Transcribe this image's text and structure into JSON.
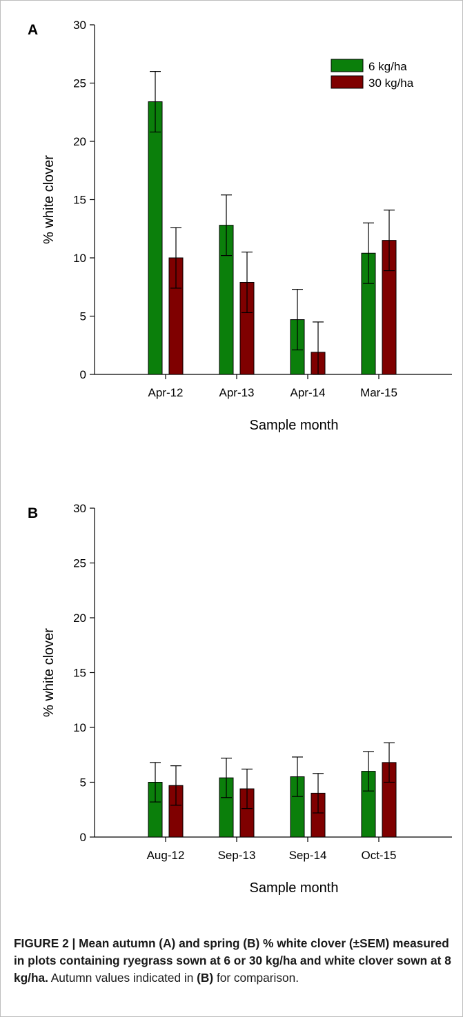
{
  "charts": [
    {
      "panel_letter": "A",
      "chart_data": {
        "type": "bar",
        "categories": [
          "Apr-12",
          "Apr-13",
          "Apr-14",
          "Mar-15"
        ],
        "series": [
          {
            "name": "6 kg/ha",
            "color": "#0b7f0b",
            "values": [
              23.4,
              12.8,
              4.7,
              10.4
            ],
            "sem": [
              2.6,
              2.6,
              2.6,
              2.6
            ]
          },
          {
            "name": "30 kg/ha",
            "color": "#7f0000",
            "values": [
              10.0,
              7.9,
              1.9,
              11.5
            ],
            "sem": [
              2.6,
              2.6,
              2.6,
              2.6
            ]
          }
        ],
        "xlabel": "Sample month",
        "ylabel": "% white clover",
        "ylim": [
          0,
          30
        ],
        "yticks": [
          0,
          5,
          10,
          15,
          20,
          25,
          30
        ],
        "grid": false,
        "legend": "top-right"
      }
    },
    {
      "panel_letter": "B",
      "chart_data": {
        "type": "bar",
        "categories": [
          "Aug-12",
          "Sep-13",
          "Sep-14",
          "Oct-15"
        ],
        "series": [
          {
            "name": "6 kg/ha",
            "color": "#0b7f0b",
            "values": [
              5.0,
              5.4,
              5.5,
              6.0
            ],
            "sem": [
              1.8,
              1.8,
              1.8,
              1.8
            ]
          },
          {
            "name": "30 kg/ha",
            "color": "#7f0000",
            "values": [
              4.7,
              4.4,
              4.0,
              6.8
            ],
            "sem": [
              1.8,
              1.8,
              1.8,
              1.8
            ]
          }
        ],
        "xlabel": "Sample month",
        "ylabel": "% white clover",
        "ylim": [
          0,
          30
        ],
        "yticks": [
          0,
          5,
          10,
          15,
          20,
          25,
          30
        ],
        "grid": false,
        "legend": "none"
      }
    }
  ],
  "caption": {
    "bold": "FIGURE 2 | Mean autumn (A) and spring (B) % white clover (±SEM) measured in plots containing ryegrass sown at 6 or 30 kg/ha and white clover sown at 8 kg/ha.",
    "normal_1": " Autumn values indicated in ",
    "bold_2": "(B)",
    "normal_2": " for comparison."
  }
}
